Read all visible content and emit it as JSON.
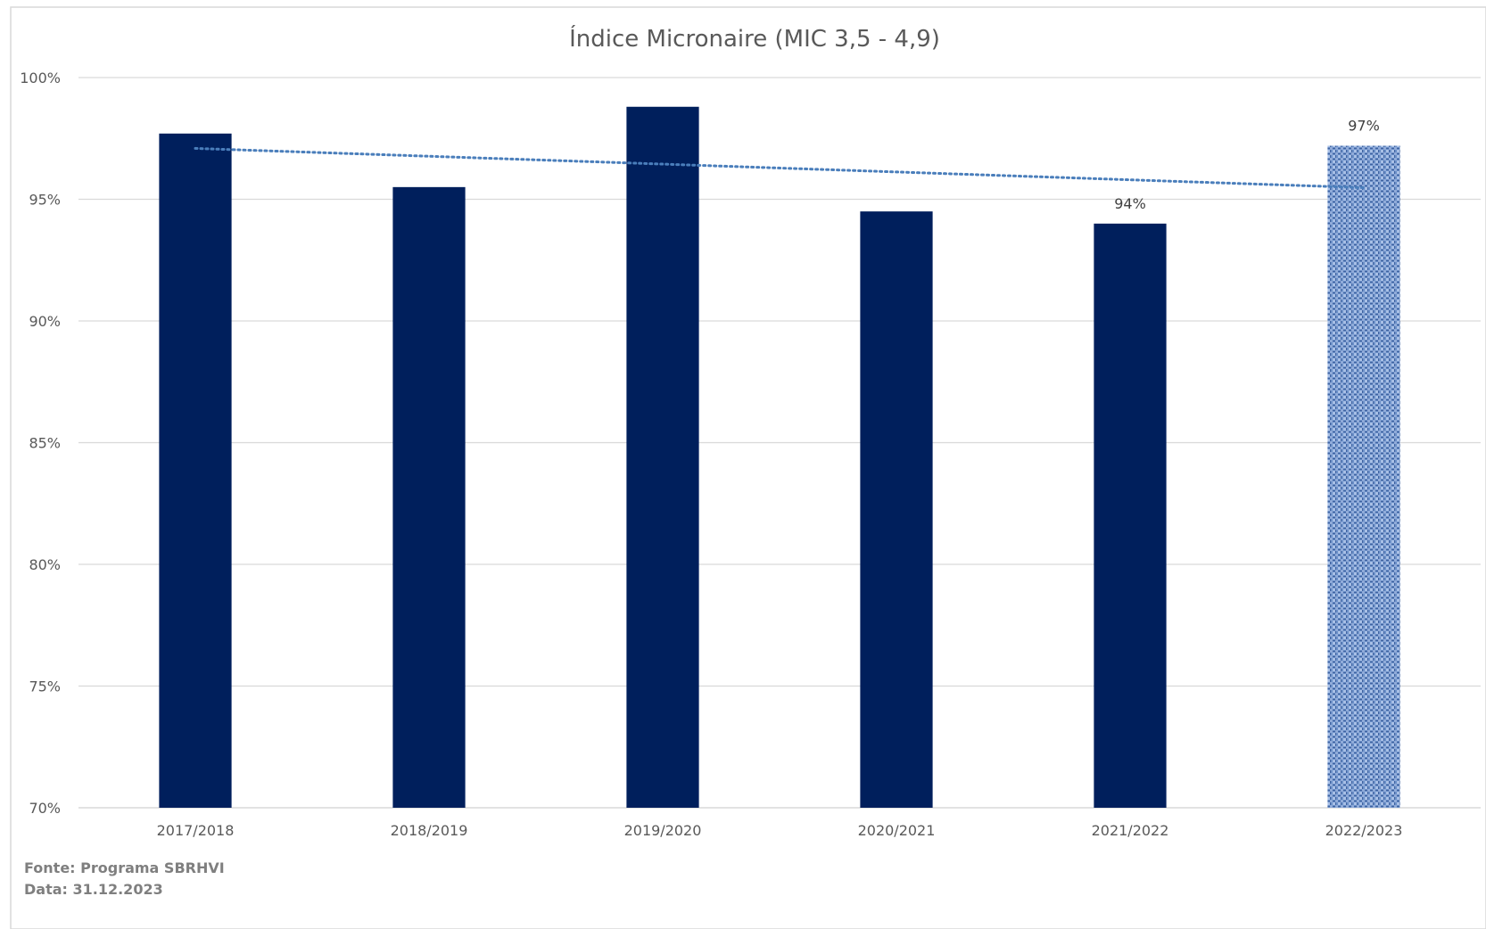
{
  "chart_data": {
    "type": "bar",
    "title": "Índice Micronaire (MIC 3,5 - 4,9)",
    "xlabel": "",
    "ylabel": "",
    "categories": [
      "2017/2018",
      "2018/2019",
      "2019/2020",
      "2020/2021",
      "2021/2022",
      "2022/2023"
    ],
    "values": [
      97.7,
      95.5,
      98.8,
      94.5,
      94.0,
      97.2
    ],
    "data_labels": [
      "",
      "",
      "",
      "",
      "94%",
      "97%"
    ],
    "ylim": [
      70,
      100
    ],
    "yticks": [
      {
        "value": 100,
        "label": "100%"
      },
      {
        "value": 95,
        "label": "95%"
      },
      {
        "value": 90,
        "label": "90%"
      },
      {
        "value": 85,
        "label": "85%"
      },
      {
        "value": 80,
        "label": "80%"
      },
      {
        "value": 75,
        "label": "75%"
      },
      {
        "value": 70,
        "label": "70%"
      }
    ],
    "grid": true,
    "trendline": {
      "type": "linear",
      "style": "dotted",
      "color": "#4a7ebb"
    },
    "bar_color": "#001f5c",
    "highlight_bar": {
      "index": 5,
      "pattern": "textured",
      "color": "#8aa7d6"
    }
  },
  "footer": {
    "source": "Fonte: Programa SBRHVI",
    "date": "Data: 31.12.2023"
  }
}
